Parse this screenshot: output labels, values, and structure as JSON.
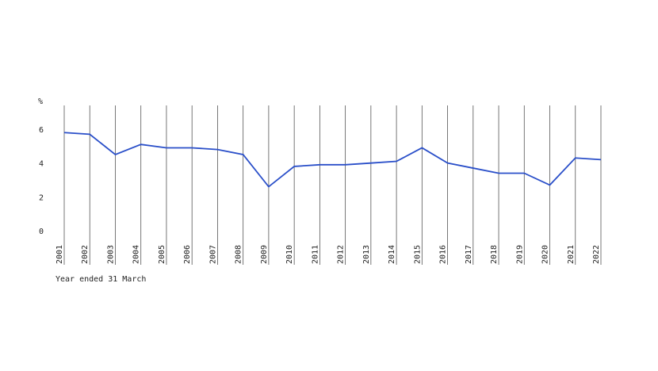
{
  "chart_data": {
    "type": "line",
    "y_label": "%",
    "x_label": "Year ended 31 March",
    "categories": [
      "2001",
      "2002",
      "2003",
      "2004",
      "2005",
      "2006",
      "2007",
      "2008",
      "2009",
      "2010",
      "2011",
      "2012",
      "2013",
      "2014",
      "2015",
      "2016",
      "2017",
      "2018",
      "2019",
      "2020",
      "2021",
      "2022"
    ],
    "values": [
      5.8,
      5.7,
      4.5,
      5.1,
      4.9,
      4.9,
      4.8,
      4.5,
      2.6,
      3.8,
      3.9,
      3.9,
      4.0,
      4.1,
      4.9,
      4.0,
      3.7,
      3.4,
      3.4,
      2.7,
      4.3,
      4.2
    ],
    "color": "#2a4fc9",
    "ylim": [
      0,
      7.5
    ],
    "yticks": [
      0,
      2,
      4,
      6
    ]
  }
}
